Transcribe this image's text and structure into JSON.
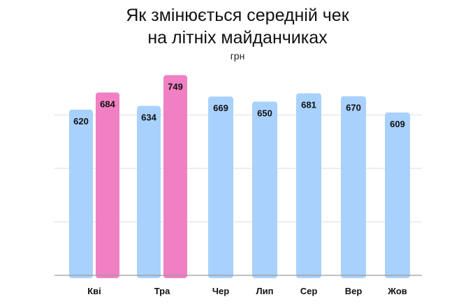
{
  "chart_data": {
    "type": "bar",
    "title_line1": "Як змінюється середній чек",
    "title_line2": "на літніх майданчиках",
    "subtitle": "грн",
    "categories": [
      "Кві",
      "Тра",
      "Чер",
      "Лип",
      "Сер",
      "Вер",
      "Жов"
    ],
    "series": [
      {
        "values": [
          620,
          634,
          669,
          650,
          681,
          670,
          609
        ],
        "color": "#a8d1fd"
      },
      {
        "values": [
          684,
          749,
          null,
          null,
          null,
          null,
          null
        ],
        "color": "#f080c3"
      }
    ],
    "ylim": [
      0,
      800
    ],
    "grid": true,
    "legend": "none"
  }
}
